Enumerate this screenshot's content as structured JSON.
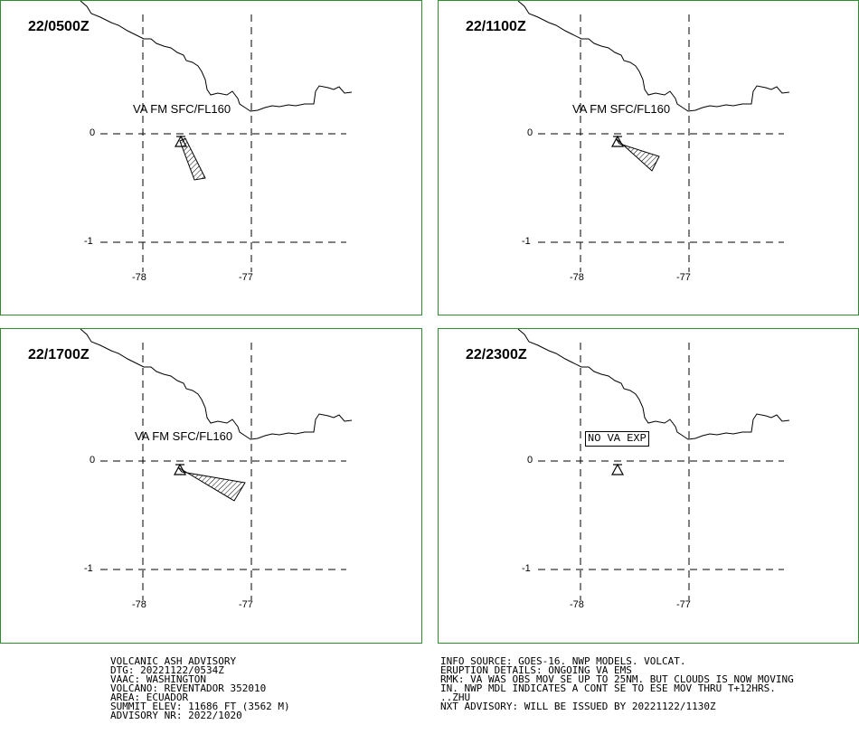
{
  "panels": [
    {
      "time": "22/0500Z",
      "label": "VA FM SFC/FL160",
      "label_boxed": false
    },
    {
      "time": "22/1100Z",
      "label": "VA FM SFC/FL160",
      "label_boxed": false
    },
    {
      "time": "22/1700Z",
      "label": "VA FM SFC/FL160",
      "label_boxed": false
    },
    {
      "time": "22/2300Z",
      "label": "NO VA EXP",
      "label_boxed": true
    }
  ],
  "axes": {
    "lat_ticks": [
      "0",
      "-1"
    ],
    "lon_ticks": [
      "-78",
      "-77"
    ]
  },
  "advisory_left": [
    "VOLCANIC ASH ADVISORY",
    "DTG: 20221122/0534Z",
    "VAAC: WASHINGTON",
    "VOLCANO: REVENTADOR 352010",
    "AREA: ECUADOR",
    "SUMMIT ELEV: 11686 FT (3562 M)",
    "ADVISORY NR: 2022/1020"
  ],
  "advisory_right": [
    "INFO SOURCE: GOES-16. NWP MODELS. VOLCAT.",
    "ERUPTION DETAILS: ONGOING VA EMS",
    "RMK: VA WAS OBS MOV SE UP TO 25NM. BUT CLOUDS IS NOW MOVING",
    "IN. NWP MDL INDICATES A CONT SE TO ESE MOV THRU T+12HRS.",
    "..ZHU",
    "NXT ADVISORY: WILL BE ISSUED BY 20221122/1130Z"
  ],
  "colors": {
    "panel_border": "#2e8b2e",
    "ink": "#000000"
  }
}
